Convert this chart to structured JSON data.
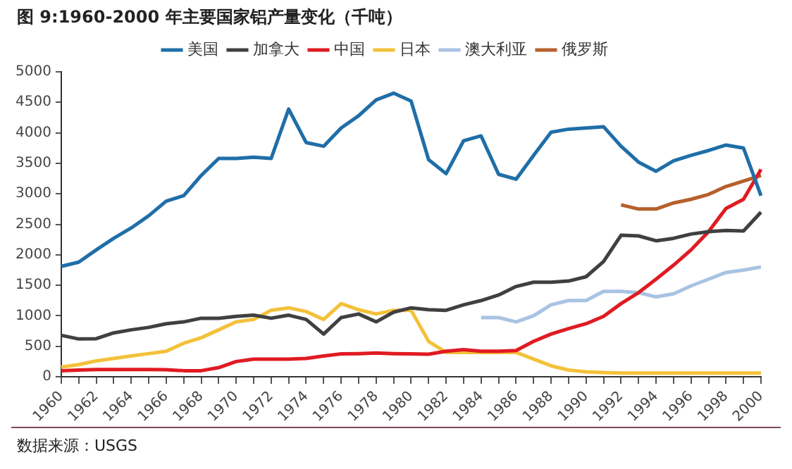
{
  "chart_data": {
    "type": "line",
    "title": "图 9:1960-2000 年主要国家铝产量变化（千吨）",
    "categories": [
      "1960",
      null,
      "1962",
      null,
      "1964",
      null,
      "1966",
      null,
      "1968",
      null,
      "1970",
      null,
      "1972",
      null,
      "1974",
      null,
      "1976",
      null,
      "1978",
      null,
      "1980",
      null,
      "1982",
      null,
      "1984",
      null,
      "1986",
      null,
      "1988",
      null,
      "1990",
      null,
      "1992",
      null,
      "1994",
      null,
      "1996",
      null,
      "1998",
      null,
      "2000"
    ],
    "series": [
      {
        "name": "美国",
        "color": "#1f6ea8",
        "values": [
          1810,
          1880,
          2080,
          2270,
          2440,
          2640,
          2880,
          2970,
          3300,
          3580,
          3580,
          3600,
          3580,
          4390,
          3840,
          3780,
          4080,
          4280,
          4540,
          4650,
          4520,
          3560,
          3330,
          3870,
          3950,
          3320,
          3240,
          3630,
          4010,
          4060,
          4080,
          4100,
          3780,
          3520,
          3370,
          3540,
          3630,
          3710,
          3800,
          3750,
          2970
        ]
      },
      {
        "name": "加拿大",
        "color": "#404040",
        "values": [
          680,
          620,
          625,
          720,
          770,
          810,
          870,
          900,
          960,
          960,
          990,
          1010,
          960,
          1010,
          940,
          700,
          970,
          1030,
          900,
          1060,
          1130,
          1100,
          1090,
          1180,
          1250,
          1340,
          1480,
          1550,
          1550,
          1570,
          1640,
          1890,
          2320,
          2310,
          2230,
          2270,
          2340,
          2380,
          2400,
          2390,
          2700
        ]
      },
      {
        "name": "中国",
        "color": "#e01b22",
        "values": [
          100,
          110,
          120,
          120,
          120,
          120,
          115,
          100,
          100,
          150,
          250,
          290,
          290,
          290,
          300,
          340,
          375,
          380,
          390,
          380,
          375,
          370,
          420,
          445,
          420,
          420,
          430,
          580,
          700,
          790,
          870,
          990,
          1200,
          1380,
          1600,
          1830,
          2080,
          2380,
          2760,
          2910,
          3400
        ]
      },
      {
        "name": "日本",
        "color": "#f3c13a",
        "values": [
          160,
          200,
          260,
          300,
          340,
          380,
          420,
          550,
          640,
          770,
          900,
          940,
          1090,
          1130,
          1070,
          940,
          1200,
          1100,
          1030,
          1090,
          1090,
          580,
          400,
          400,
          400,
          400,
          400,
          290,
          180,
          110,
          80,
          70,
          60,
          60,
          60,
          60,
          60,
          60,
          60,
          60,
          60
        ]
      },
      {
        "name": "澳大利亚",
        "color": "#a8c3e3",
        "values": [
          null,
          null,
          null,
          null,
          null,
          null,
          null,
          null,
          null,
          null,
          null,
          null,
          null,
          null,
          null,
          null,
          null,
          null,
          null,
          null,
          null,
          null,
          null,
          null,
          970,
          970,
          900,
          1000,
          1180,
          1250,
          1250,
          1400,
          1400,
          1380,
          1310,
          1360,
          1490,
          1600,
          1710,
          1750,
          1800
        ]
      },
      {
        "name": "俄罗斯",
        "color": "#b5602c",
        "values": [
          null,
          null,
          null,
          null,
          null,
          null,
          null,
          null,
          null,
          null,
          null,
          null,
          null,
          null,
          null,
          null,
          null,
          null,
          null,
          null,
          null,
          null,
          null,
          null,
          null,
          null,
          null,
          null,
          null,
          null,
          null,
          null,
          2820,
          2750,
          2750,
          2850,
          2910,
          2990,
          3120,
          3210,
          3300
        ]
      }
    ],
    "ylim": [
      0,
      5000
    ],
    "yticks": [
      0,
      500,
      1000,
      1500,
      2000,
      2500,
      3000,
      3500,
      4000,
      4500,
      5000
    ],
    "legend": "top",
    "marker": "none",
    "line_style": "solid",
    "annotations": [
      "数据来源：USGS"
    ]
  }
}
